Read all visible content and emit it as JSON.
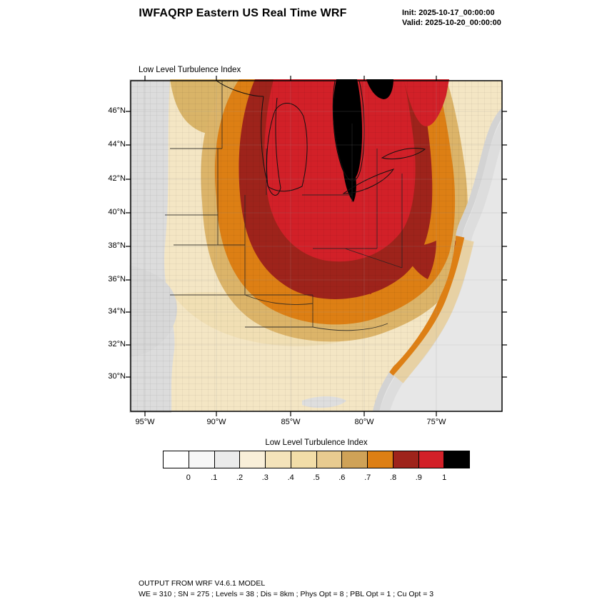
{
  "header": {
    "title": "IWFAQRP Eastern US Real Time WRF",
    "init_label": "Init: 2025-10-17_00:00:00",
    "valid_label": "Valid: 2025-10-20_00:00:00"
  },
  "map": {
    "field_label": "Low Level Turbulence Index",
    "lat_ticks": [
      "46°N",
      "44°N",
      "42°N",
      "40°N",
      "38°N",
      "36°N",
      "34°N",
      "32°N",
      "30°N"
    ],
    "lon_ticks": [
      "95°W",
      "90°W",
      "85°W",
      "80°W",
      "75°W"
    ],
    "field_colors": {
      "low_gray": "#dcdcdc",
      "cream": "#f4e6c4",
      "tan": "#dcb469",
      "orange": "#dd7f14",
      "dark_red": "#9e231b",
      "red": "#d22028",
      "max_black": "#000000",
      "ocean_gray": "#e7e7e7"
    }
  },
  "colorbar": {
    "title": "Low Level Turbulence Index",
    "tick_labels": [
      "0",
      ".1",
      ".2",
      ".3",
      ".4",
      ".5",
      ".6",
      ".7",
      ".8",
      ".9",
      "1"
    ],
    "colors": [
      "#ffffff",
      "#f7f7f7",
      "#ebebeb",
      "#f9efd9",
      "#f4e3ba",
      "#f2dda8",
      "#e8cb90",
      "#cfa257",
      "#dd7f14",
      "#9e231b",
      "#d22028",
      "#000000"
    ]
  },
  "footer": {
    "line1": "OUTPUT FROM WRF V4.6.1 MODEL",
    "line2": "WE = 310 ; SN = 275 ; Levels = 38 ; Dis = 8km ; Phys Opt = 8 ; PBL Opt = 1 ; Cu Opt = 3"
  }
}
